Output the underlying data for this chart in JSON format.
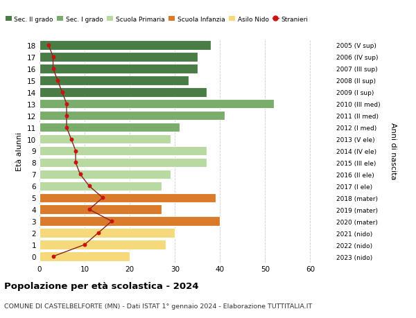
{
  "ages": [
    18,
    17,
    16,
    15,
    14,
    13,
    12,
    11,
    10,
    9,
    8,
    7,
    6,
    5,
    4,
    3,
    2,
    1,
    0
  ],
  "bar_values": [
    38,
    35,
    35,
    33,
    37,
    52,
    41,
    31,
    29,
    37,
    37,
    29,
    27,
    39,
    27,
    40,
    30,
    28,
    20
  ],
  "stranieri": [
    2,
    3,
    3,
    4,
    5,
    6,
    6,
    6,
    7,
    8,
    8,
    9,
    11,
    14,
    11,
    16,
    13,
    10,
    3
  ],
  "right_labels": [
    "2005 (V sup)",
    "2006 (IV sup)",
    "2007 (III sup)",
    "2008 (II sup)",
    "2009 (I sup)",
    "2010 (III med)",
    "2011 (II med)",
    "2012 (I med)",
    "2013 (V ele)",
    "2014 (IV ele)",
    "2015 (III ele)",
    "2016 (II ele)",
    "2017 (I ele)",
    "2018 (mater)",
    "2019 (mater)",
    "2020 (mater)",
    "2021 (nido)",
    "2022 (nido)",
    "2023 (nido)"
  ],
  "bar_colors": [
    "#4a7c45",
    "#4a7c45",
    "#4a7c45",
    "#4a7c45",
    "#4a7c45",
    "#7aac6b",
    "#7aac6b",
    "#7aac6b",
    "#b8d9a0",
    "#b8d9a0",
    "#b8d9a0",
    "#b8d9a0",
    "#b8d9a0",
    "#d97b2a",
    "#d97b2a",
    "#d97b2a",
    "#f5d97a",
    "#f5d97a",
    "#f5d97a"
  ],
  "legend_items": [
    {
      "label": "Sec. II grado",
      "color": "#4a7c45",
      "type": "patch"
    },
    {
      "label": "Sec. I grado",
      "color": "#7aac6b",
      "type": "patch"
    },
    {
      "label": "Scuola Primaria",
      "color": "#b8d9a0",
      "type": "patch"
    },
    {
      "label": "Scuola Infanzia",
      "color": "#d97b2a",
      "type": "patch"
    },
    {
      "label": "Asilo Nido",
      "color": "#f5d97a",
      "type": "patch"
    },
    {
      "label": "Stranieri",
      "color": "#cc1111",
      "type": "line"
    }
  ],
  "ylabel_left": "Età alunni",
  "ylabel_right": "Anni di nascita",
  "title": "Popolazione per età scolastica - 2024",
  "subtitle": "COMUNE DI CASTELBELFORTE (MN) - Dati ISTAT 1° gennaio 2024 - Elaborazione TUTTITALIA.IT",
  "xlim": [
    0,
    65
  ],
  "xticks": [
    0,
    10,
    20,
    30,
    40,
    50,
    60
  ],
  "background_color": "#ffffff",
  "grid_color": "#cccccc",
  "stranieri_line_color": "#882222",
  "stranieri_dot_color": "#cc1111",
  "bar_edgecolor": "white",
  "bar_height": 0.8
}
